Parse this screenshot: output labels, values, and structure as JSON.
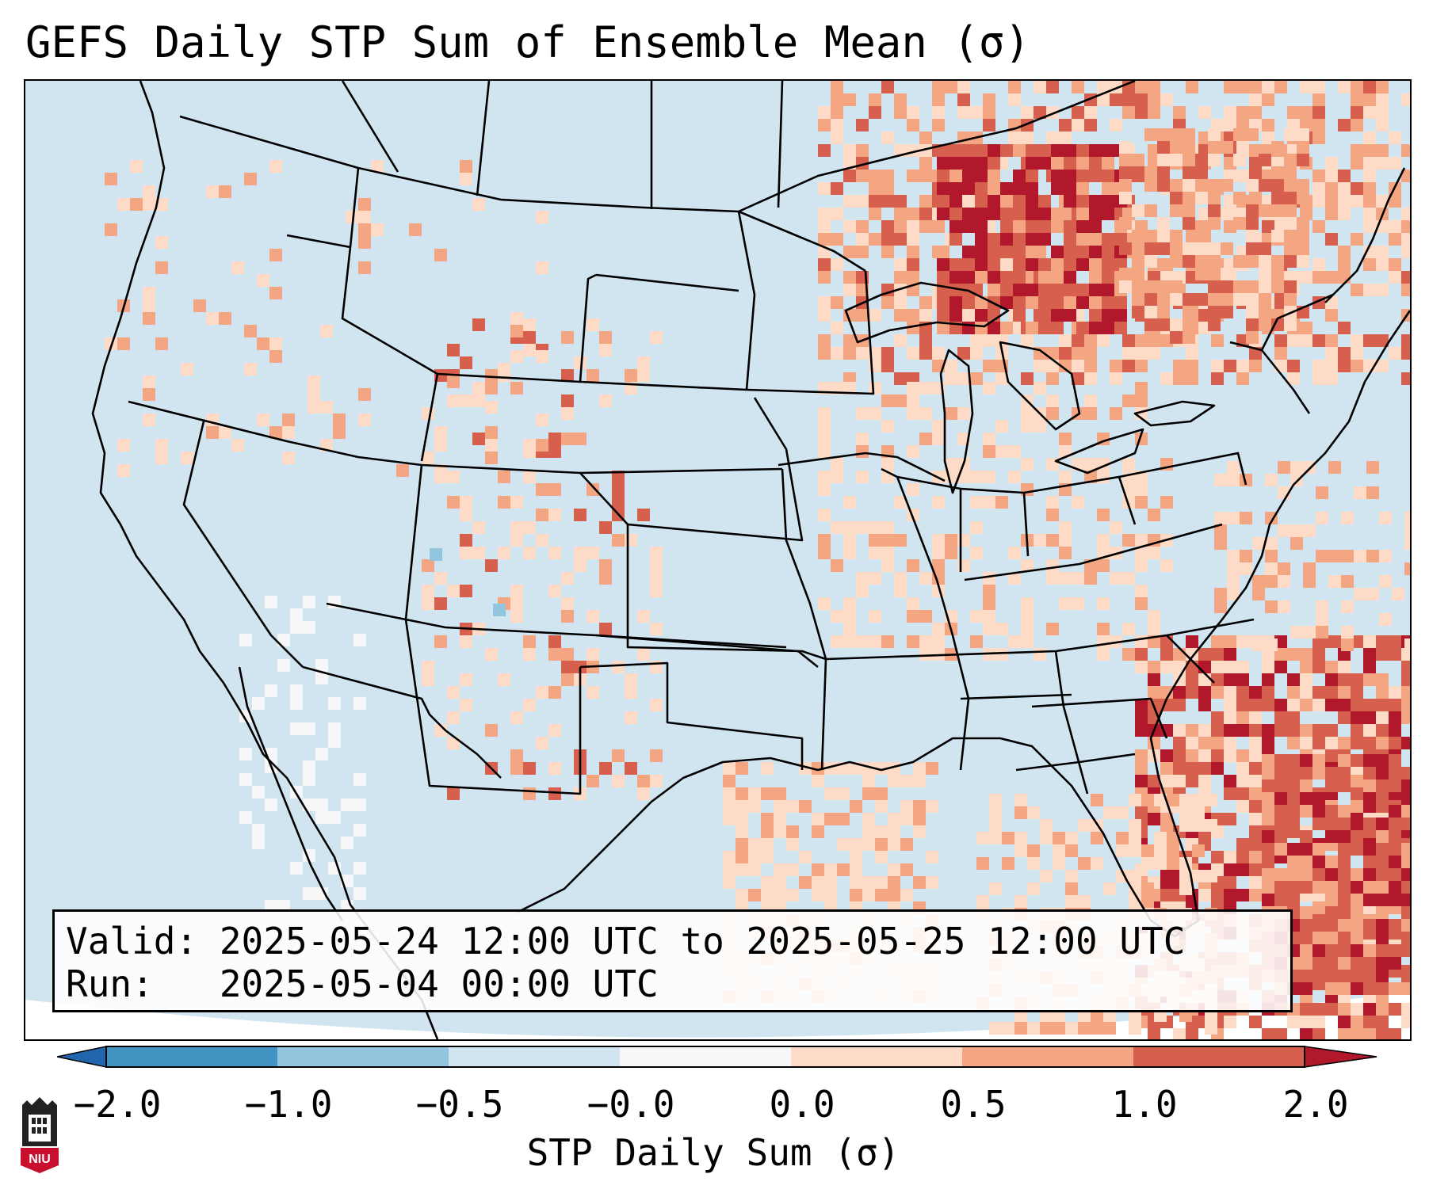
{
  "title": "GEFS Daily STP Sum of Ensemble Mean (σ)",
  "valid_line": "Valid: 2025-05-24 12:00 UTC to 2025-05-25 12:00 UTC",
  "run_line": "Run:   2025-05-04 00:00 UTC",
  "colorbar": {
    "label": "STP Daily Sum (σ)",
    "ticks": [
      "−2.0",
      "−1.0",
      "−0.5",
      "−0.0",
      "0.0",
      "0.5",
      "1.0",
      "2.0"
    ],
    "bins": [
      {
        "range": "< -2.0",
        "color": "#2166ac"
      },
      {
        "range": "-2.0 to -1.0",
        "color": "#4393c3"
      },
      {
        "range": "-1.0 to -0.5",
        "color": "#92c5de"
      },
      {
        "range": "-0.5 to -0.0",
        "color": "#d1e5f0"
      },
      {
        "range": "-0.0 to 0.0",
        "color": "#f7f7f7"
      },
      {
        "range": "0.0 to 0.5",
        "color": "#fddbc7"
      },
      {
        "range": "0.5 to 1.0",
        "color": "#f4a582"
      },
      {
        "range": "1.0 to 2.0",
        "color": "#d6604d"
      },
      {
        "range": "> 2.0",
        "color": "#b2182b"
      }
    ]
  },
  "logo": {
    "text": "NIU",
    "icon": "niu-logo-icon"
  }
}
